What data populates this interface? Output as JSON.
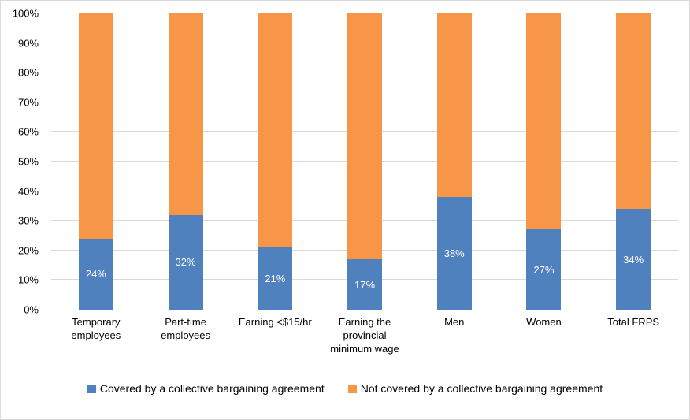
{
  "chart_data": {
    "type": "bar",
    "stacked": true,
    "title": "",
    "xlabel": "",
    "ylabel": "",
    "categories": [
      "Temporary employees",
      "Part-time employees",
      "Earning <$15/hr",
      "Earning the provincial minimum wage",
      "Men",
      "Women",
      "Total FRPS"
    ],
    "series": [
      {
        "name": "Covered by a collective bargaining agreement",
        "color": "#4e81bd",
        "values": [
          24,
          32,
          21,
          17,
          38,
          27,
          34
        ]
      },
      {
        "name": "Not covered by a collective bargaining agreement",
        "color": "#f79646",
        "values": [
          76,
          68,
          79,
          83,
          62,
          73,
          66
        ]
      }
    ],
    "data_labels": [
      "24%",
      "32%",
      "21%",
      "17%",
      "38%",
      "27%",
      "34%"
    ],
    "ylim": [
      0,
      100
    ],
    "ytick_step": 10,
    "ytick_labels": [
      "0%",
      "10%",
      "20%",
      "30%",
      "40%",
      "50%",
      "60%",
      "70%",
      "80%",
      "90%",
      "100%"
    ],
    "grid": true,
    "legend_position": "bottom"
  },
  "colors": {
    "covered": "#4e81bd",
    "not_covered": "#f79646",
    "gridline": "#d9d9d9",
    "axis_line": "#bfbfbf",
    "data_label_text": "#ffffff",
    "axis_text": "#000000",
    "chart_border": "#d9d9d9",
    "background": "#ffffff"
  }
}
